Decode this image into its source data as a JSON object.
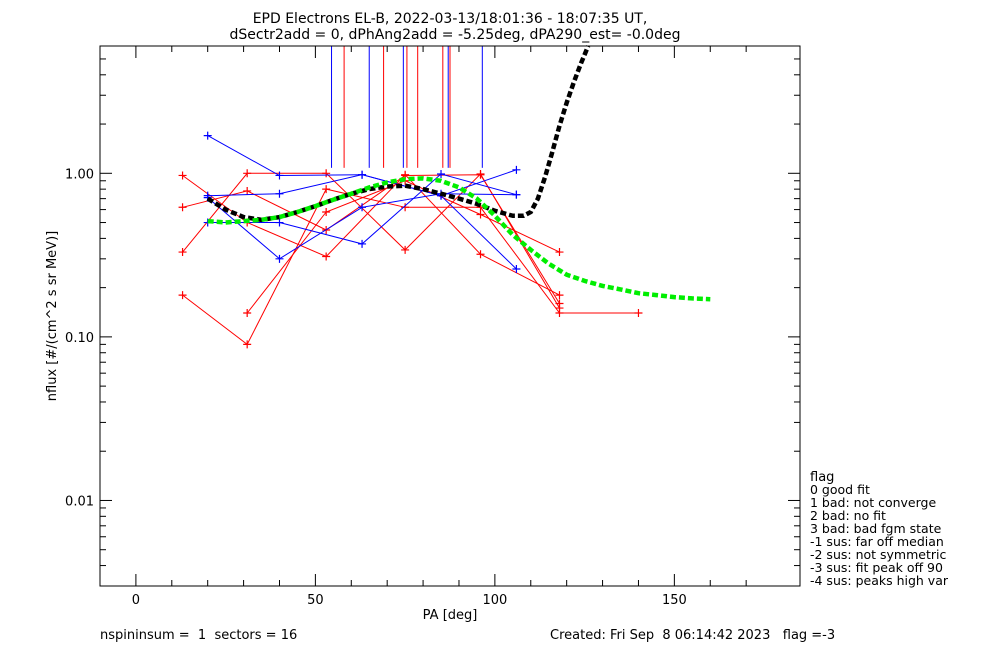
{
  "chart_data": {
    "type": "line",
    "title": "EPD Electrons EL-B, 2022-03-13/18:01:36 - 18:07:35 UT,",
    "subtitle": "dSectr2add = 0, dPhAng2add = -5.25deg, dPA290_est=  -0.0deg",
    "xlabel": "PA [deg]",
    "ylabel": "nflux [#/(cm^2 s sr MeV)]",
    "xlim": [
      -10,
      185
    ],
    "ylim": [
      0.003,
      6.0
    ],
    "yscale": "log",
    "xticks": [
      "0",
      "50",
      "100",
      "150"
    ],
    "xtick_values": [
      0,
      50,
      100,
      150
    ],
    "yticks": [
      "0.01",
      "0.10",
      "1.00"
    ],
    "ytick_values": [
      0.01,
      0.1,
      1.0
    ],
    "grid": false,
    "series": [
      {
        "color": "#ff0000",
        "x": [
          13,
          31,
          53,
          75,
          96,
          118
        ],
        "y": [
          0.97,
          0.5,
          0.31,
          0.98,
          0.32,
          0.18
        ]
      },
      {
        "color": "#ff0000",
        "x": [
          13,
          31,
          53,
          75,
          96,
          118
        ],
        "y": [
          0.62,
          0.78,
          0.45,
          0.97,
          0.98,
          0.16
        ]
      },
      {
        "color": "#ff0000",
        "x": [
          13,
          31,
          53,
          75,
          96,
          118
        ],
        "y": [
          0.33,
          1.0,
          1.0,
          0.34,
          0.99,
          0.15
        ]
      },
      {
        "color": "#ff0000",
        "x": [
          13,
          31,
          53,
          75,
          96,
          118,
          140
        ],
        "y": [
          0.18,
          0.09,
          0.8,
          0.62,
          0.62,
          0.14,
          0.14
        ]
      },
      {
        "color": "#ff0000",
        "x": [
          31,
          53,
          75,
          96,
          118
        ],
        "y": [
          0.14,
          0.58,
          0.9,
          0.56,
          0.33
        ]
      },
      {
        "color": "#0000ff",
        "x": [
          20,
          40,
          63,
          85,
          106
        ],
        "y": [
          1.7,
          0.97,
          0.98,
          0.73,
          0.26
        ]
      },
      {
        "color": "#0000ff",
        "x": [
          20,
          40,
          63,
          85,
          106
        ],
        "y": [
          0.73,
          0.75,
          0.98,
          0.73,
          1.05
        ]
      },
      {
        "color": "#0000ff",
        "x": [
          20,
          40,
          63,
          85,
          106
        ],
        "y": [
          0.5,
          0.5,
          0.37,
          0.99,
          0.74
        ]
      },
      {
        "color": "#0000ff",
        "x": [
          20,
          40,
          63,
          85,
          106
        ],
        "y": [
          0.71,
          0.3,
          0.62,
          0.75,
          0.74
        ]
      }
    ],
    "fit_curves": [
      {
        "color": "#000000",
        "style": "dashed",
        "x": [
          20,
          25,
          30,
          35,
          40,
          45,
          50,
          55,
          60,
          65,
          70,
          75,
          80,
          85,
          90,
          95,
          100,
          105,
          108,
          110,
          112,
          114,
          116,
          118,
          120,
          122,
          124,
          126
        ],
        "y": [
          0.7,
          0.6,
          0.54,
          0.52,
          0.54,
          0.58,
          0.63,
          0.69,
          0.75,
          0.8,
          0.83,
          0.84,
          0.8,
          0.75,
          0.7,
          0.65,
          0.59,
          0.55,
          0.55,
          0.58,
          0.7,
          0.95,
          1.35,
          1.95,
          2.7,
          3.6,
          4.7,
          6.0
        ]
      },
      {
        "color": "#00ee00",
        "style": "dashed",
        "x": [
          20,
          25,
          30,
          35,
          40,
          45,
          50,
          55,
          60,
          65,
          70,
          75,
          80,
          85,
          90,
          95,
          100,
          105,
          110,
          115,
          120,
          125,
          130,
          135,
          140,
          145,
          150,
          155,
          160
        ],
        "y": [
          0.51,
          0.5,
          0.51,
          0.52,
          0.54,
          0.58,
          0.63,
          0.69,
          0.75,
          0.82,
          0.88,
          0.92,
          0.93,
          0.9,
          0.82,
          0.7,
          0.55,
          0.42,
          0.34,
          0.28,
          0.24,
          0.22,
          0.205,
          0.195,
          0.185,
          0.18,
          0.175,
          0.172,
          0.17
        ]
      }
    ],
    "vlines": [
      {
        "x": 54.5,
        "color": "#0000ff"
      },
      {
        "x": 58.0,
        "color": "#ff0000"
      },
      {
        "x": 65.0,
        "color": "#0000ff"
      },
      {
        "x": 69.0,
        "color": "#ff0000"
      },
      {
        "x": 74.5,
        "color": "#0000ff"
      },
      {
        "x": 75.5,
        "color": "#ff0000"
      },
      {
        "x": 78.5,
        "color": "#ff0000"
      },
      {
        "x": 85.5,
        "color": "#ff0000"
      },
      {
        "x": 87.0,
        "color": "#0000ff"
      },
      {
        "x": 87.5,
        "color": "#ff0000"
      },
      {
        "x": 96.5,
        "color": "#0000ff"
      }
    ],
    "vline_y_bottom": 1.08
  },
  "legend": {
    "title": "flag",
    "items": [
      " 0 good fit",
      " 1 bad: not converge",
      " 2 bad: no fit",
      " 3 bad: bad fgm state",
      "-1 sus: far off median",
      "-2 sus: not symmetric",
      "-3 sus: fit peak off 90",
      "-4 sus: peaks high var"
    ]
  },
  "footer": {
    "left": "nspininsum =  1  sectors = 16",
    "right": "Created: Fri Sep  8 06:14:42 2023   flag =-3"
  }
}
